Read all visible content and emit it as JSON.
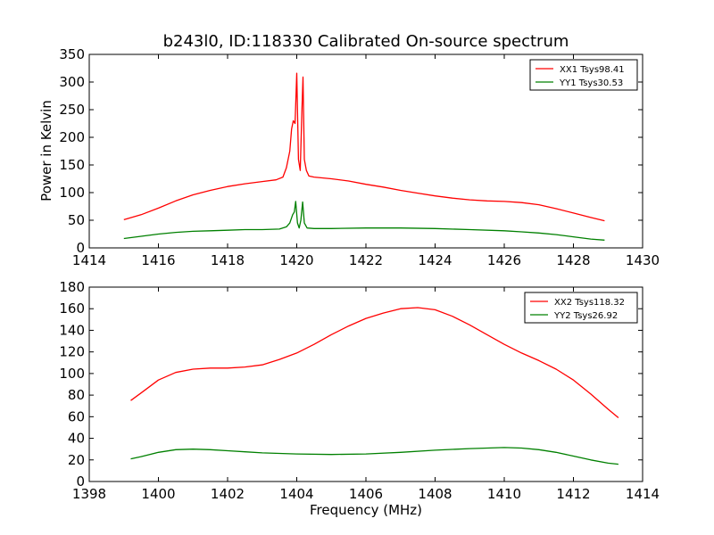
{
  "chart_data": [
    {
      "type": "line",
      "title": "b243l0, ID:118330 Calibrated On-source spectrum",
      "xlabel": "",
      "ylabel": "Power in Kelvin",
      "xlim": [
        1414,
        1430
      ],
      "ylim": [
        0,
        350
      ],
      "xticks": [
        "1414",
        "1416",
        "1418",
        "1420",
        "1422",
        "1424",
        "1426",
        "1428",
        "1430"
      ],
      "yticks": [
        "0",
        "50",
        "100",
        "150",
        "200",
        "250",
        "300",
        "350"
      ],
      "grid": false,
      "legend_position": "top-right",
      "series": [
        {
          "name": "XX1 Tsys98.41",
          "color": "#ff0000",
          "points": [
            [
              1415.0,
              51
            ],
            [
              1415.5,
              60
            ],
            [
              1416.0,
              72
            ],
            [
              1416.5,
              85
            ],
            [
              1417.0,
              96
            ],
            [
              1417.5,
              104
            ],
            [
              1418.0,
              111
            ],
            [
              1418.5,
              116
            ],
            [
              1419.0,
              120
            ],
            [
              1419.4,
              123
            ],
            [
              1419.6,
              128
            ],
            [
              1419.7,
              145
            ],
            [
              1419.8,
              175
            ],
            [
              1419.85,
              215
            ],
            [
              1419.9,
              230
            ],
            [
              1419.95,
              225
            ],
            [
              1420.0,
              316
            ],
            [
              1420.05,
              160
            ],
            [
              1420.1,
              140
            ],
            [
              1420.15,
              250
            ],
            [
              1420.18,
              309
            ],
            [
              1420.22,
              160
            ],
            [
              1420.28,
              140
            ],
            [
              1420.35,
              130
            ],
            [
              1420.5,
              128
            ],
            [
              1421.0,
              125
            ],
            [
              1421.5,
              121
            ],
            [
              1422.0,
              115
            ],
            [
              1422.5,
              110
            ],
            [
              1423.0,
              104
            ],
            [
              1423.5,
              99
            ],
            [
              1424.0,
              94
            ],
            [
              1424.5,
              90
            ],
            [
              1425.0,
              87
            ],
            [
              1425.5,
              85
            ],
            [
              1426.0,
              84
            ],
            [
              1426.5,
              82
            ],
            [
              1427.0,
              78
            ],
            [
              1427.5,
              71
            ],
            [
              1428.0,
              63
            ],
            [
              1428.5,
              55
            ],
            [
              1428.9,
              49
            ]
          ]
        },
        {
          "name": "YY1 Tsys30.53",
          "color": "#008000",
          "points": [
            [
              1415.0,
              17
            ],
            [
              1415.5,
              21
            ],
            [
              1416.0,
              25
            ],
            [
              1416.5,
              28
            ],
            [
              1417.0,
              30
            ],
            [
              1417.5,
              31
            ],
            [
              1418.0,
              32
            ],
            [
              1418.5,
              33
            ],
            [
              1419.0,
              33
            ],
            [
              1419.5,
              34
            ],
            [
              1419.7,
              38
            ],
            [
              1419.8,
              45
            ],
            [
              1419.88,
              60
            ],
            [
              1419.93,
              65
            ],
            [
              1419.97,
              84
            ],
            [
              1420.02,
              45
            ],
            [
              1420.07,
              36
            ],
            [
              1420.12,
              50
            ],
            [
              1420.17,
              83
            ],
            [
              1420.22,
              45
            ],
            [
              1420.3,
              36
            ],
            [
              1420.5,
              35
            ],
            [
              1421.0,
              35
            ],
            [
              1422.0,
              36
            ],
            [
              1423.0,
              36
            ],
            [
              1424.0,
              35
            ],
            [
              1425.0,
              33
            ],
            [
              1426.0,
              31
            ],
            [
              1426.5,
              29
            ],
            [
              1427.0,
              27
            ],
            [
              1427.5,
              24
            ],
            [
              1428.0,
              20
            ],
            [
              1428.5,
              16
            ],
            [
              1428.9,
              14
            ]
          ]
        }
      ]
    },
    {
      "type": "line",
      "title": "",
      "xlabel": "Frequency (MHz)",
      "ylabel": "",
      "xlim": [
        1398,
        1414
      ],
      "ylim": [
        0,
        180
      ],
      "xticks": [
        "1398",
        "1400",
        "1402",
        "1404",
        "1406",
        "1408",
        "1410",
        "1412",
        "1414"
      ],
      "yticks": [
        "0",
        "20",
        "40",
        "60",
        "80",
        "100",
        "120",
        "140",
        "160",
        "180"
      ],
      "grid": false,
      "legend_position": "top-right",
      "series": [
        {
          "name": "XX2 Tsys118.32",
          "color": "#ff0000",
          "points": [
            [
              1399.2,
              75
            ],
            [
              1399.5,
              82
            ],
            [
              1400.0,
              94
            ],
            [
              1400.5,
              101
            ],
            [
              1401.0,
              104
            ],
            [
              1401.5,
              105
            ],
            [
              1402.0,
              105
            ],
            [
              1402.5,
              106
            ],
            [
              1403.0,
              108
            ],
            [
              1403.5,
              113
            ],
            [
              1404.0,
              119
            ],
            [
              1404.5,
              127
            ],
            [
              1405.0,
              136
            ],
            [
              1405.5,
              144
            ],
            [
              1406.0,
              151
            ],
            [
              1406.5,
              156
            ],
            [
              1407.0,
              160
            ],
            [
              1407.5,
              161
            ],
            [
              1408.0,
              159
            ],
            [
              1408.5,
              153
            ],
            [
              1409.0,
              145
            ],
            [
              1409.5,
              136
            ],
            [
              1410.0,
              127
            ],
            [
              1410.5,
              119
            ],
            [
              1411.0,
              112
            ],
            [
              1411.5,
              104
            ],
            [
              1412.0,
              94
            ],
            [
              1412.5,
              81
            ],
            [
              1413.0,
              67
            ],
            [
              1413.3,
              59
            ]
          ]
        },
        {
          "name": "YY2 Tsys26.92",
          "color": "#008000",
          "points": [
            [
              1399.2,
              21
            ],
            [
              1399.5,
              23
            ],
            [
              1400.0,
              27
            ],
            [
              1400.5,
              29.5
            ],
            [
              1401.0,
              30
            ],
            [
              1401.5,
              29.5
            ],
            [
              1402.0,
              28.5
            ],
            [
              1402.5,
              27.5
            ],
            [
              1403.0,
              26.5
            ],
            [
              1403.5,
              26
            ],
            [
              1404.0,
              25.5
            ],
            [
              1405.0,
              25
            ],
            [
              1406.0,
              25.5
            ],
            [
              1407.0,
              27
            ],
            [
              1408.0,
              29
            ],
            [
              1409.0,
              30.5
            ],
            [
              1410.0,
              31.5
            ],
            [
              1410.5,
              31
            ],
            [
              1411.0,
              29.5
            ],
            [
              1411.5,
              27
            ],
            [
              1412.0,
              23.5
            ],
            [
              1412.5,
              20
            ],
            [
              1413.0,
              17
            ],
            [
              1413.3,
              16
            ]
          ]
        }
      ]
    }
  ]
}
